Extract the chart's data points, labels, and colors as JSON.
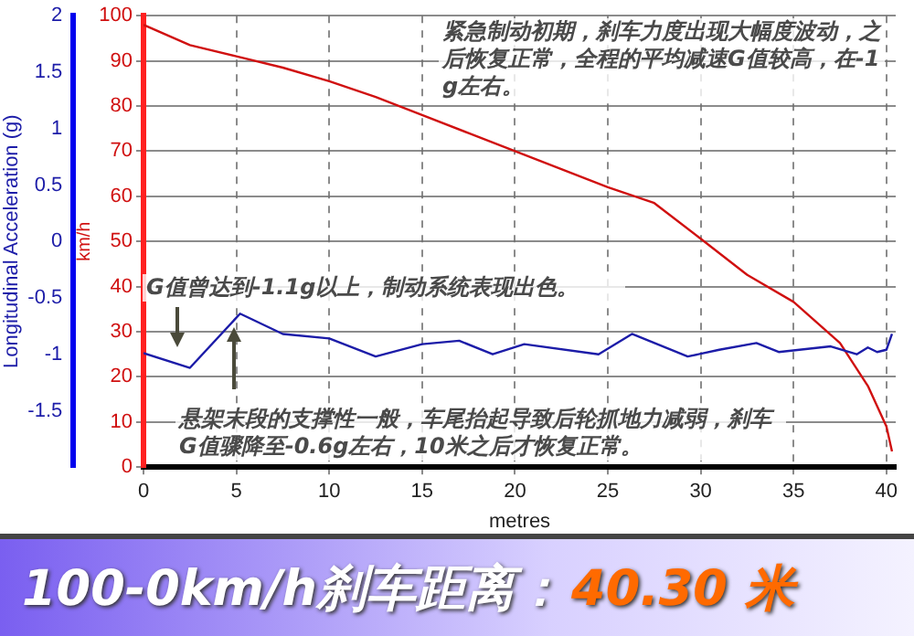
{
  "chart_data": {
    "type": "line",
    "title": "100-0km/h刹车距离：",
    "subtitle": "40.30 米",
    "xlabel": "metres",
    "ylabel": "Longitudinal Acceleration (g)",
    "y2label": "km/h",
    "annotations": [
      "紧急制动初期，刹车力度出现大幅度波动，之后恢复正常，全程的平均减速G值较高，在-1g左右。",
      "G值曾达到-1.1g以上，制动系统表现出色。",
      "悬架末段的支撑性一般，车尾抬起导致后轮抓地力减弱，刹车G值骤降至-0.6g左右，10米之后才恢复正常。"
    ],
    "xlim": [
      0,
      40.5
    ],
    "xticks": [
      0,
      5,
      10,
      15,
      20,
      25,
      30,
      35,
      40
    ],
    "ylim": [
      -2,
      2
    ],
    "yticks": [
      2,
      1.5,
      1,
      0.5,
      0,
      -0.5,
      -1,
      -1.5
    ],
    "y2lim": [
      0,
      100
    ],
    "y2ticks": [
      0,
      10,
      20,
      30,
      40,
      50,
      60,
      70,
      80,
      90,
      100
    ],
    "grid": true,
    "legend": false,
    "marker": "none",
    "series": [
      {
        "color": "#1c1ca8",
        "x": [
          0,
          2.5,
          5.2,
          7.5,
          10,
          12.5,
          15,
          17,
          18.8,
          20.5,
          24.5,
          26.3,
          29.3,
          31,
          33,
          34.2,
          37,
          38.4,
          39,
          39.5,
          40,
          40.3
        ],
        "values": [
          -0.99,
          -1.12,
          -0.64,
          -0.82,
          -0.86,
          -1.02,
          -0.91,
          -0.88,
          -1.0,
          -0.91,
          -1.0,
          -0.82,
          -1.02,
          -0.96,
          -0.9,
          -0.98,
          -0.93,
          -1.0,
          -0.94,
          -0.98,
          -0.96,
          -0.82
        ]
      },
      {
        "color": "#d01010",
        "axis": "y2",
        "x": [
          0,
          2.5,
          5,
          7.5,
          10,
          12.5,
          15,
          17.5,
          20,
          25,
          27.5,
          30,
          32.5,
          35,
          37.5,
          39,
          40,
          40.3
        ],
        "values": [
          98,
          93.5,
          91,
          88.5,
          85.5,
          82,
          78,
          74,
          70,
          62,
          58.5,
          50.6,
          42.6,
          36.6,
          27.5,
          18,
          9,
          3.5
        ]
      }
    ]
  }
}
